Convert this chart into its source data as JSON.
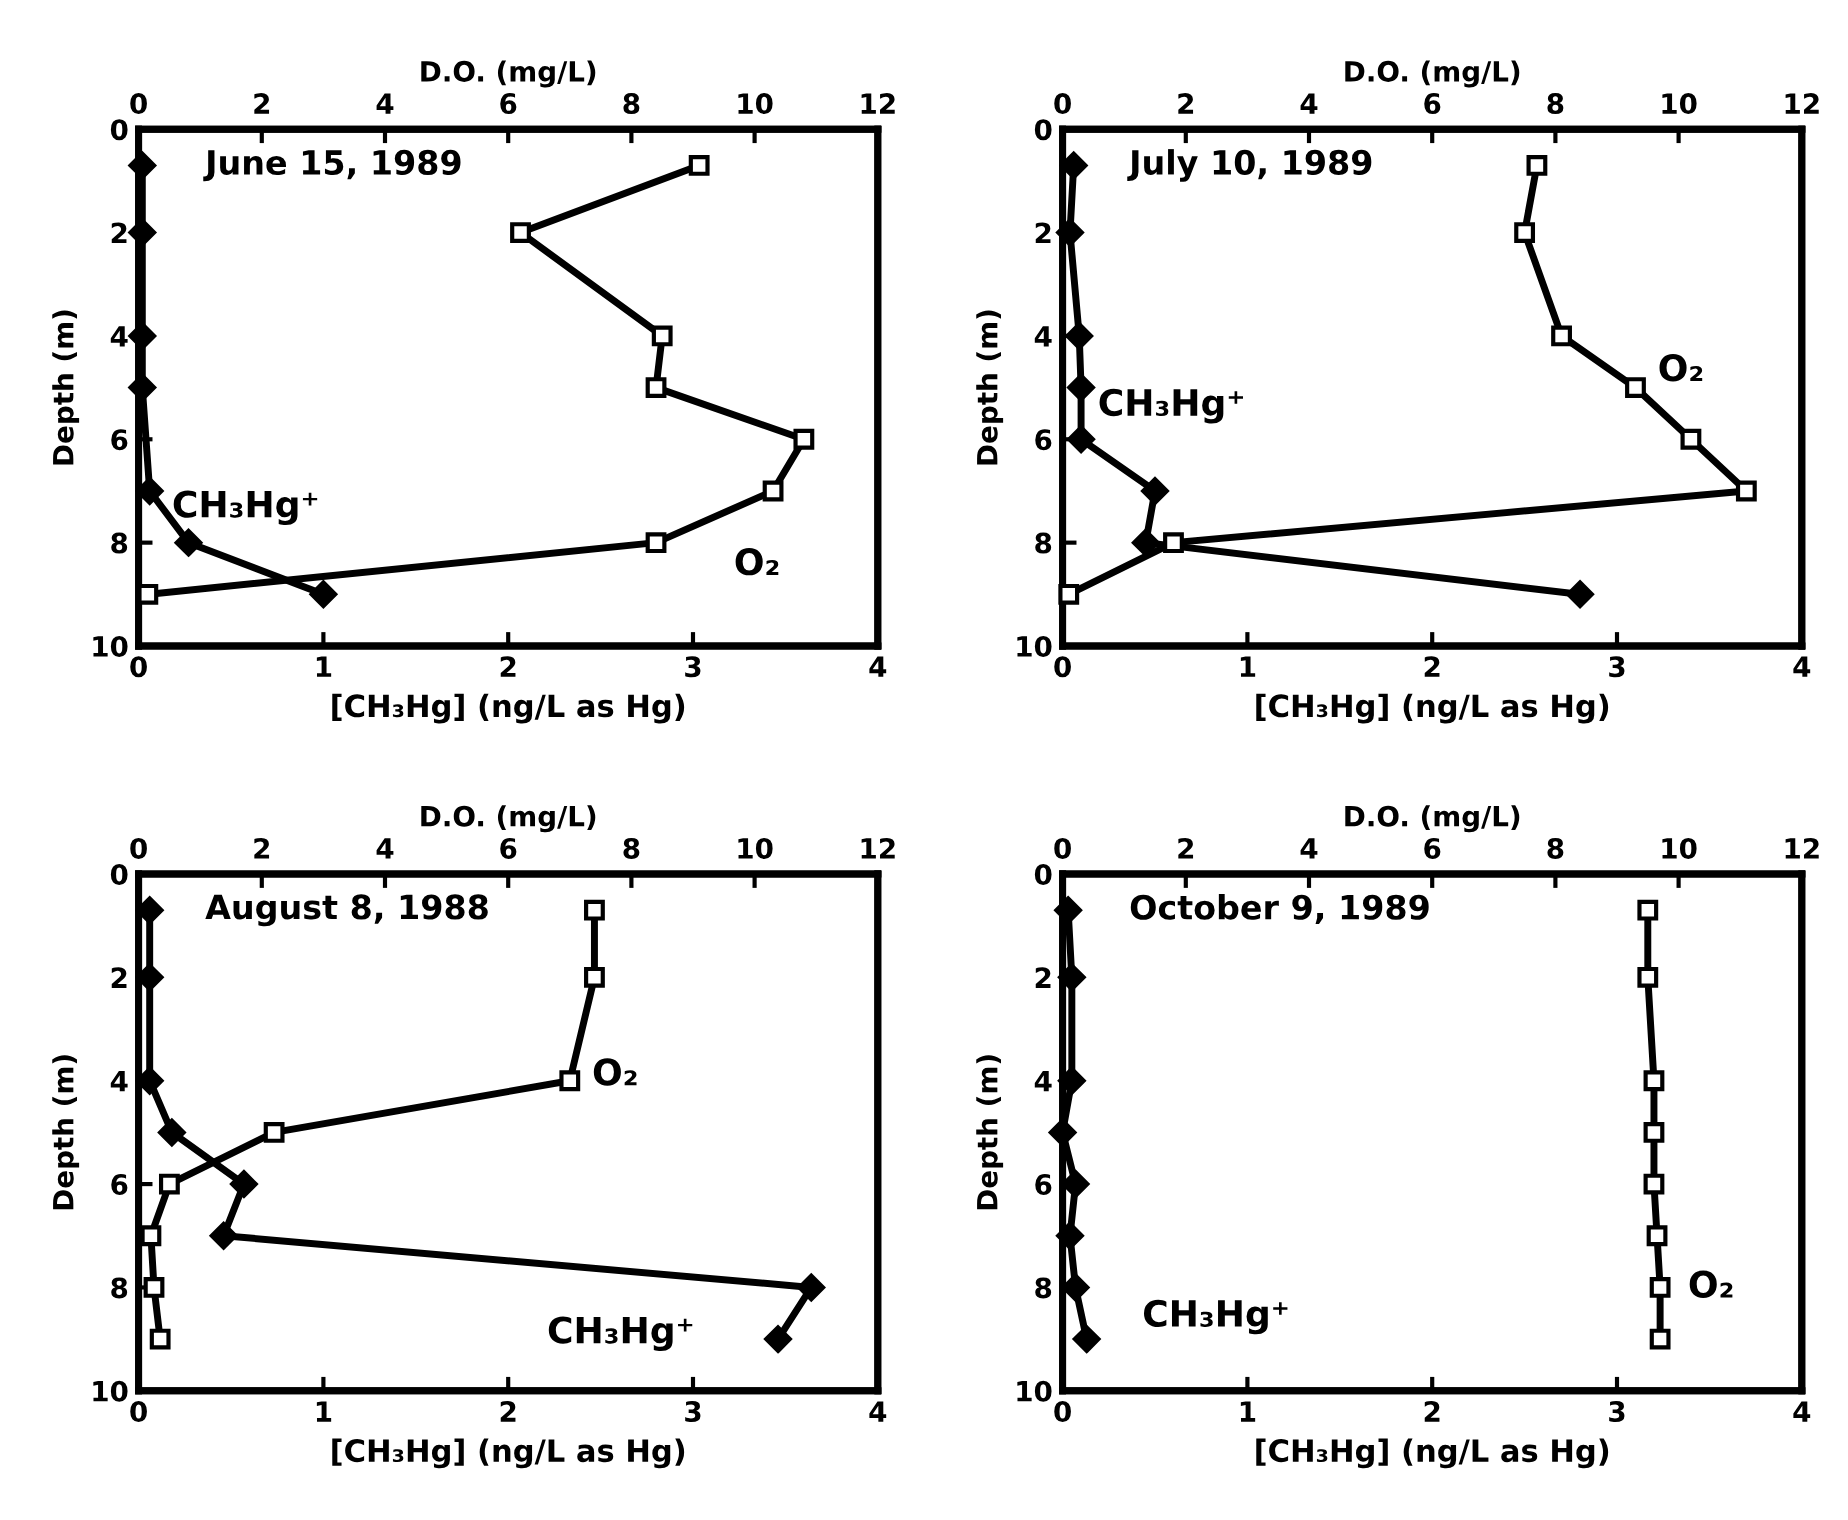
{
  "chart_data": [
    {
      "type": "line",
      "title": "June 15, 1989",
      "xlabel": "[CH₃Hg] (ng/L as Hg)",
      "x2label": "D.O. (mg/L)",
      "ylabel": "Depth (m)",
      "xlim": [
        0,
        4
      ],
      "xticks": [
        0,
        1,
        2,
        3,
        4
      ],
      "x2lim": [
        0,
        12
      ],
      "x2ticks": [
        0,
        2,
        4,
        6,
        8,
        10,
        12
      ],
      "ylim": [
        10,
        0
      ],
      "yticks": [
        0,
        2,
        4,
        6,
        8,
        10
      ],
      "series": [
        {
          "name": "CH₃Hg⁺",
          "color": "#000000",
          "marker": "diamond",
          "x": [
            0.02,
            0.02,
            0.02,
            0.02,
            0.06,
            0.27,
            1.0
          ],
          "values": [
            0.7,
            2,
            4,
            5,
            7,
            8,
            9
          ]
        },
        {
          "name": "O₂",
          "color": "#000000",
          "marker": "square",
          "axis": "x2",
          "x": [
            9.1,
            6.2,
            8.5,
            8.4,
            10.8,
            10.3,
            8.4,
            0.15
          ],
          "values": [
            0.7,
            2,
            4,
            5,
            6,
            7,
            8,
            9
          ]
        }
      ]
    },
    {
      "type": "line",
      "title": "July 10, 1989",
      "xlabel": "[CH₃Hg] (ng/L as Hg)",
      "x2label": "D.O. (mg/L)",
      "ylabel": "Depth (m)",
      "xlim": [
        0,
        4
      ],
      "xticks": [
        0,
        1,
        2,
        3,
        4
      ],
      "x2lim": [
        0,
        12
      ],
      "x2ticks": [
        0,
        2,
        4,
        6,
        8,
        10,
        12
      ],
      "ylim": [
        10,
        0
      ],
      "yticks": [
        0,
        2,
        4,
        6,
        8,
        10
      ],
      "series": [
        {
          "name": "CH₃Hg⁺",
          "color": "#000000",
          "marker": "diamond",
          "x": [
            0.06,
            0.04,
            0.09,
            0.1,
            0.1,
            0.5,
            0.45,
            2.8
          ],
          "values": [
            0.7,
            2,
            4,
            5,
            6,
            7,
            8,
            9
          ]
        },
        {
          "name": "O₂",
          "color": "#000000",
          "marker": "square",
          "axis": "x2",
          "x": [
            7.7,
            7.5,
            8.1,
            9.3,
            10.2,
            11.1,
            1.8,
            0.1
          ],
          "values": [
            0.7,
            2,
            4,
            5,
            6,
            7,
            8,
            9
          ]
        }
      ]
    },
    {
      "type": "line",
      "title": "August 8, 1988",
      "xlabel": "[CH₃Hg] (ng/L as Hg)",
      "x2label": "D.O. (mg/L)",
      "ylabel": "Depth (m)",
      "xlim": [
        0,
        4
      ],
      "xticks": [
        0,
        1,
        2,
        3,
        4
      ],
      "x2lim": [
        0,
        12
      ],
      "x2ticks": [
        0,
        2,
        4,
        6,
        8,
        10,
        12
      ],
      "ylim": [
        10,
        0
      ],
      "yticks": [
        0,
        2,
        4,
        6,
        8,
        10
      ],
      "series": [
        {
          "name": "CH₃Hg⁺",
          "color": "#000000",
          "marker": "diamond",
          "x": [
            0.06,
            0.06,
            0.06,
            0.18,
            0.57,
            0.46,
            3.64,
            3.46
          ],
          "values": [
            0.7,
            2,
            4,
            5,
            6,
            7,
            8,
            9
          ]
        },
        {
          "name": "O₂",
          "color": "#000000",
          "marker": "square",
          "axis": "x2",
          "x": [
            7.4,
            7.4,
            7.0,
            2.2,
            0.5,
            0.2,
            0.25,
            0.35
          ],
          "values": [
            0.7,
            2,
            4,
            5,
            6,
            7,
            8,
            9
          ]
        }
      ]
    },
    {
      "type": "line",
      "title": "October 9, 1989",
      "xlabel": "[CH₃Hg] (ng/L as Hg)",
      "x2label": "D.O. (mg/L)",
      "ylabel": "Depth (m)",
      "xlim": [
        0,
        4
      ],
      "xticks": [
        0,
        1,
        2,
        3,
        4
      ],
      "x2lim": [
        0,
        12
      ],
      "x2ticks": [
        0,
        2,
        4,
        6,
        8,
        10,
        12
      ],
      "ylim": [
        10,
        0
      ],
      "yticks": [
        0,
        2,
        4,
        6,
        8,
        10
      ],
      "series": [
        {
          "name": "CH₃Hg⁺",
          "color": "#000000",
          "marker": "diamond",
          "x": [
            0.03,
            0.05,
            0.05,
            0.0,
            0.07,
            0.04,
            0.07,
            0.13
          ],
          "values": [
            0.7,
            2,
            4,
            5,
            6,
            7,
            8,
            9
          ]
        },
        {
          "name": "O₂",
          "color": "#000000",
          "marker": "square",
          "axis": "x2",
          "x": [
            9.5,
            9.5,
            9.6,
            9.6,
            9.6,
            9.65,
            9.7,
            9.7
          ],
          "values": [
            0.7,
            2,
            4,
            5,
            6,
            7,
            8,
            9
          ]
        }
      ]
    }
  ]
}
